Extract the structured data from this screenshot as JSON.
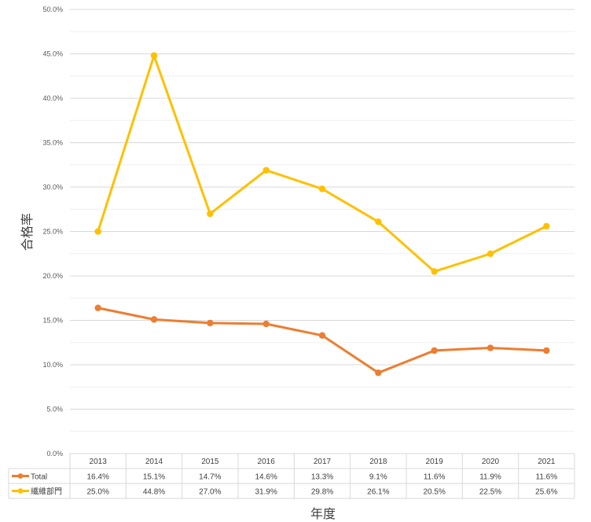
{
  "chart_data": {
    "type": "line",
    "title": "",
    "xlabel": "年度",
    "ylabel": "合格率",
    "ylim": [
      0,
      50
    ],
    "y_ticks": [
      "0.0%",
      "5.0%",
      "10.0%",
      "15.0%",
      "20.0%",
      "25.0%",
      "30.0%",
      "35.0%",
      "40.0%",
      "45.0%",
      "50.0%"
    ],
    "categories": [
      "2013",
      "2014",
      "2015",
      "2016",
      "2017",
      "2018",
      "2019",
      "2020",
      "2021"
    ],
    "grid": true,
    "legend": "data-table",
    "series": [
      {
        "name": "Total",
        "color": "#ED7D31",
        "values": [
          16.4,
          15.1,
          14.7,
          14.6,
          13.3,
          9.1,
          11.6,
          11.9,
          11.6
        ],
        "labels": [
          "16.4%",
          "15.1%",
          "14.7%",
          "14.6%",
          "13.3%",
          "9.1%",
          "11.6%",
          "11.9%",
          "11.6%"
        ]
      },
      {
        "name": "繊維部門",
        "color": "#FFC000",
        "values": [
          25.0,
          44.8,
          27.0,
          31.9,
          29.8,
          26.1,
          20.5,
          22.5,
          25.6
        ],
        "labels": [
          "25.0%",
          "44.8%",
          "27.0%",
          "31.9%",
          "29.8%",
          "26.1%",
          "20.5%",
          "22.5%",
          "25.6%"
        ]
      }
    ]
  }
}
